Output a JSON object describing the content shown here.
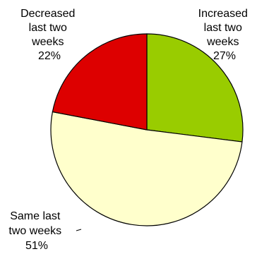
{
  "chart_data": {
    "type": "pie",
    "title": "",
    "slices": [
      {
        "label_lines": [
          "Increased",
          "last two",
          "weeks",
          "27%"
        ],
        "value": 27,
        "color": "#99cc00"
      },
      {
        "label_lines": [
          "Same last",
          "two weeks",
          "51%"
        ],
        "value": 51,
        "color": "#ffffcc"
      },
      {
        "label_lines": [
          "Decreased",
          "last two",
          "weeks",
          "22%"
        ],
        "value": 22,
        "color": "#dd0000"
      }
    ],
    "start": "top",
    "direction": "clockwise",
    "leader_line_on": "Same last two weeks"
  }
}
